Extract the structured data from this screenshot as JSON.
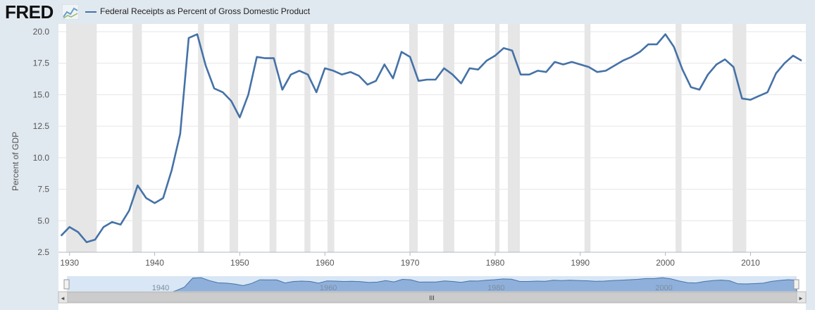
{
  "header": {
    "logo_text": "FRED",
    "logo_icon": "line-chart-icon",
    "series_title": "Federal Receipts as Percent of Gross Domestic Product",
    "series_color": "#4572a7"
  },
  "colors": {
    "line": "#4572a7",
    "recession": "#e6e6e6",
    "grid": "#e6e6e6",
    "nav_fill": "#8fb0da",
    "nav_selected": "#d8e6f5",
    "plot_bg": "#ffffff"
  },
  "navigator": {
    "tick_labels": [
      "1940",
      "1960",
      "1980",
      "2000"
    ],
    "scroll_handle": "III"
  },
  "chart_data": {
    "type": "line",
    "title": "Federal Receipts as Percent of Gross Domestic Product",
    "xlabel": "",
    "ylabel": "Percent of GDP",
    "ylim": [
      2.5,
      20.0
    ],
    "xlim": [
      1928.7,
      2016.5
    ],
    "y_ticks": [
      "2.5",
      "5.0",
      "7.5",
      "10.0",
      "12.5",
      "15.0",
      "17.5",
      "20.0"
    ],
    "x_ticks": [
      "1930",
      "1940",
      "1950",
      "1960",
      "1970",
      "1980",
      "1990",
      "2000",
      "2010"
    ],
    "grid": true,
    "recessions": [
      [
        1929.6,
        1933.2
      ],
      [
        1937.4,
        1938.5
      ],
      [
        1945.1,
        1945.8
      ],
      [
        1948.8,
        1949.8
      ],
      [
        1953.5,
        1954.3
      ],
      [
        1957.6,
        1958.3
      ],
      [
        1960.3,
        1961.1
      ],
      [
        1969.9,
        1970.9
      ],
      [
        1973.9,
        1975.2
      ],
      [
        1980.0,
        1980.5
      ],
      [
        1981.5,
        1982.9
      ],
      [
        1990.5,
        1991.2
      ],
      [
        2001.2,
        2001.9
      ],
      [
        2007.9,
        2009.5
      ]
    ],
    "series": [
      {
        "name": "Federal Receipts as Percent of Gross Domestic Product",
        "x": [
          1929,
          1930,
          1931,
          1932,
          1933,
          1934,
          1935,
          1936,
          1937,
          1938,
          1939,
          1940,
          1941,
          1942,
          1943,
          1944,
          1945,
          1946,
          1947,
          1948,
          1949,
          1950,
          1951,
          1952,
          1953,
          1954,
          1955,
          1956,
          1957,
          1958,
          1959,
          1960,
          1961,
          1962,
          1963,
          1964,
          1965,
          1966,
          1967,
          1968,
          1969,
          1970,
          1971,
          1972,
          1973,
          1974,
          1975,
          1976,
          1977,
          1978,
          1979,
          1980,
          1981,
          1982,
          1983,
          1984,
          1985,
          1986,
          1987,
          1988,
          1989,
          1990,
          1991,
          1992,
          1993,
          1994,
          1995,
          1996,
          1997,
          1998,
          1999,
          2000,
          2001,
          2002,
          2003,
          2004,
          2005,
          2006,
          2007,
          2008,
          2009,
          2010,
          2011,
          2012,
          2013,
          2014,
          2015,
          2016
        ],
        "values": [
          3.8,
          4.5,
          4.1,
          3.3,
          3.5,
          4.5,
          4.9,
          4.7,
          5.8,
          7.8,
          6.8,
          6.4,
          6.8,
          9.0,
          11.9,
          19.5,
          19.8,
          17.3,
          15.5,
          15.2,
          14.5,
          13.2,
          15.0,
          18.0,
          17.9,
          17.9,
          15.4,
          16.6,
          16.9,
          16.6,
          15.2,
          17.1,
          16.9,
          16.6,
          16.8,
          16.5,
          15.8,
          16.1,
          17.4,
          16.3,
          18.4,
          18.0,
          16.1,
          16.2,
          16.2,
          17.1,
          16.6,
          15.9,
          17.1,
          17.0,
          17.7,
          18.1,
          18.7,
          18.5,
          16.6,
          16.6,
          16.9,
          16.8,
          17.6,
          17.4,
          17.6,
          17.4,
          17.2,
          16.8,
          16.9,
          17.3,
          17.7,
          18.0,
          18.4,
          19.0,
          19.0,
          19.8,
          18.8,
          17.0,
          15.6,
          15.4,
          16.6,
          17.4,
          17.8,
          17.2,
          14.7,
          14.6,
          14.9,
          15.2,
          16.7,
          17.5,
          18.1,
          17.7
        ]
      }
    ]
  }
}
